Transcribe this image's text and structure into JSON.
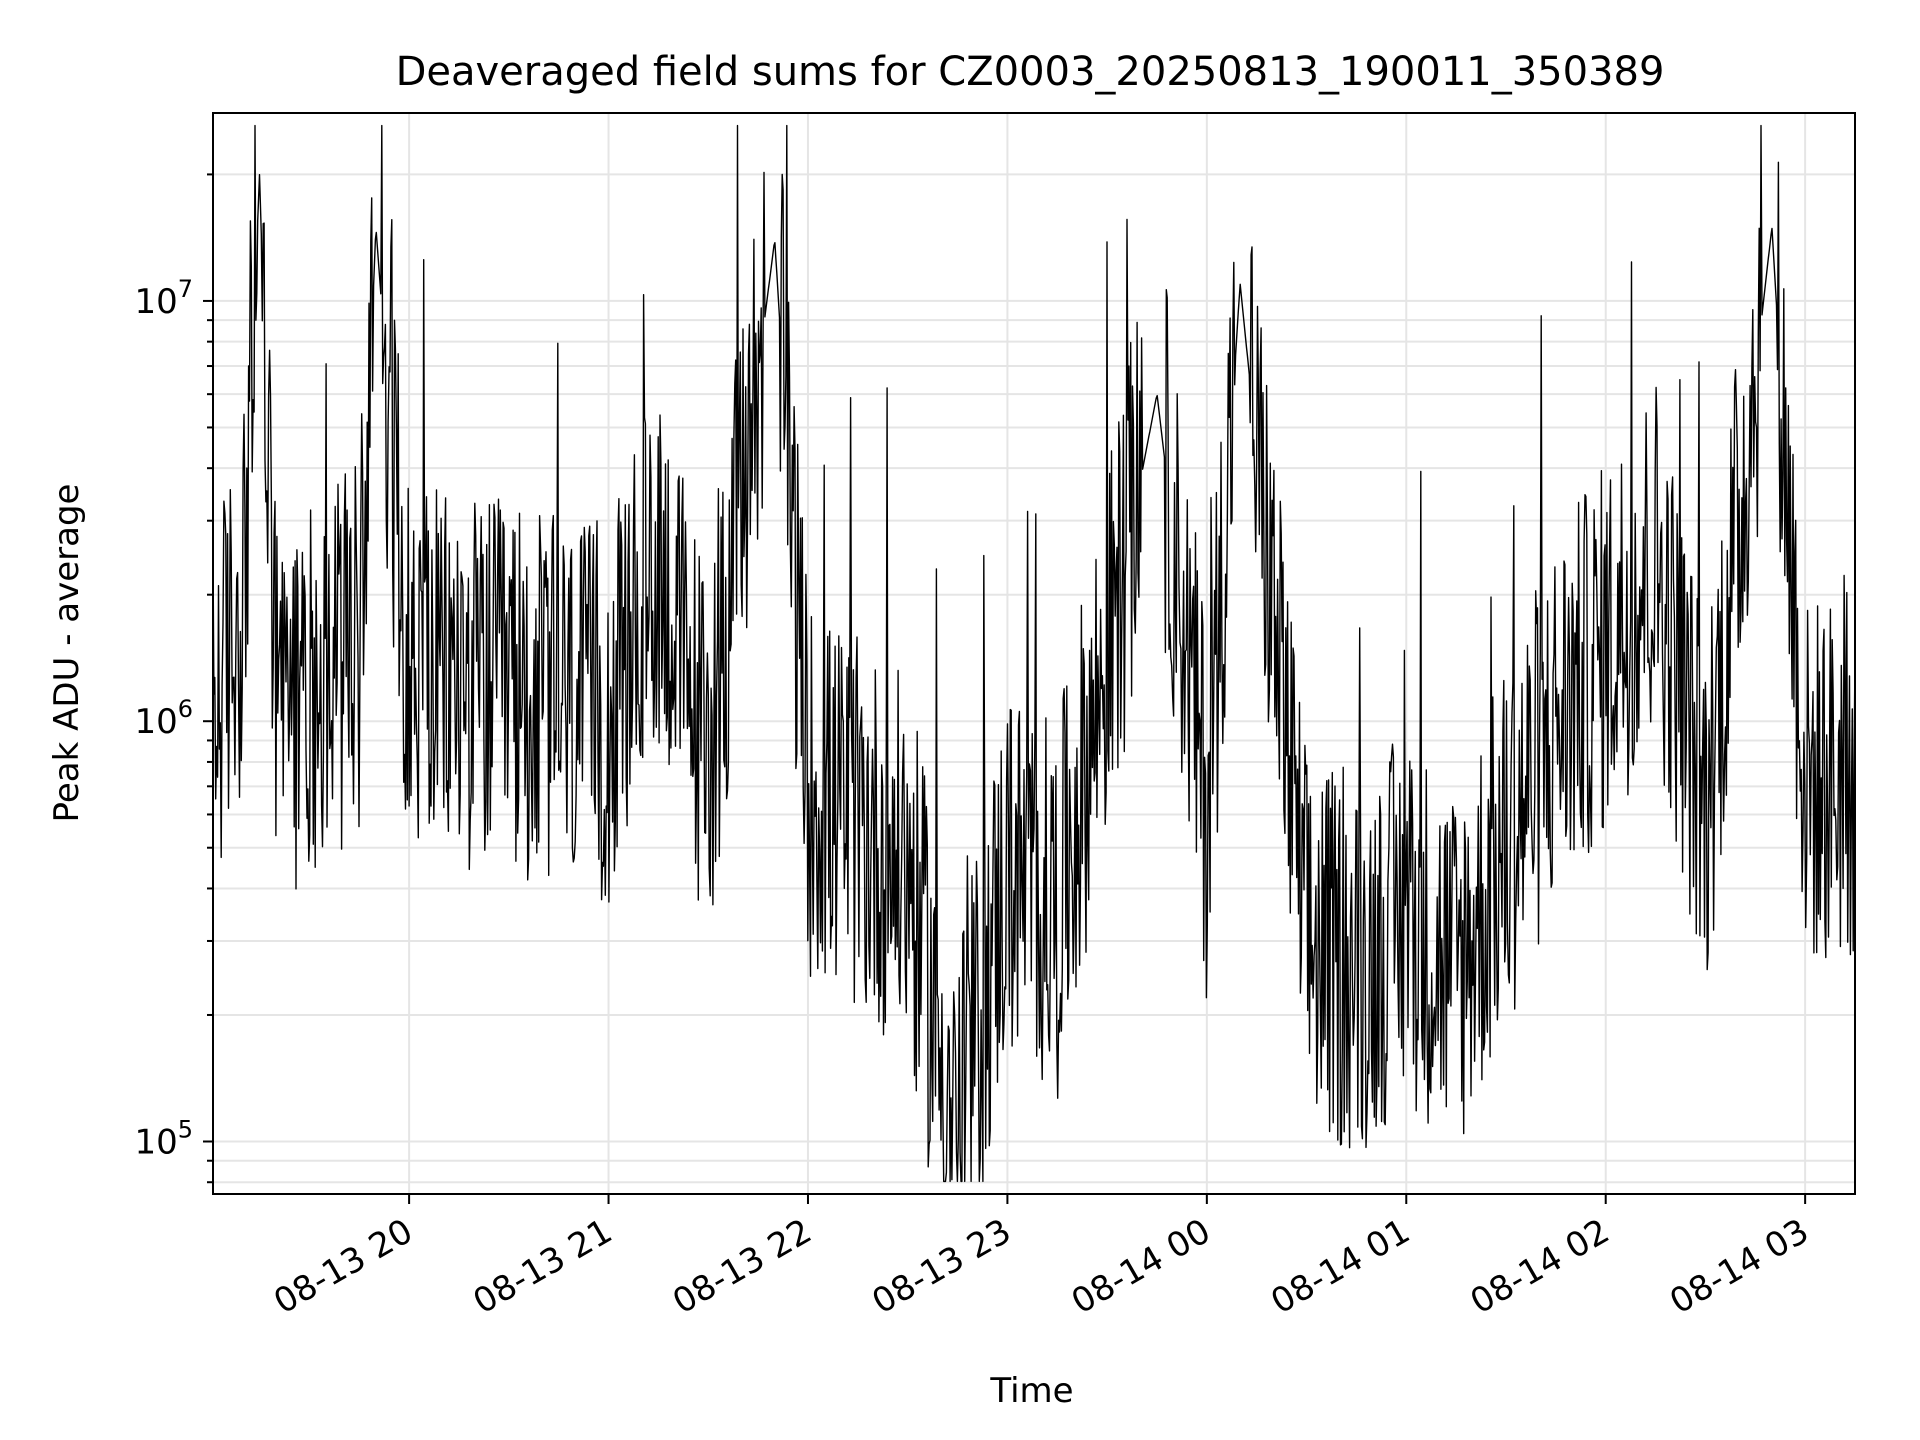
{
  "chart_data": {
    "type": "line",
    "title": "Deaveraged field sums for CZ0003_20250813_190011_350389",
    "xlabel": "Time",
    "ylabel": "Peak ADU - average",
    "x_range": [
      "2025-08-13 19:01",
      "2025-08-14 03:15"
    ],
    "ylim": [
      75000,
      28000000
    ],
    "y_scale": "log",
    "x_tick_labels": [
      "08-13 20",
      "08-13 21",
      "08-13 22",
      "08-13 23",
      "08-14 00",
      "08-14 01",
      "08-14 02",
      "08-14 03"
    ],
    "y_tick_labels": [
      {
        "base": "10",
        "exp": "5",
        "value": 100000
      },
      {
        "base": "10",
        "exp": "6",
        "value": 1000000
      },
      {
        "base": "10",
        "exp": "7",
        "value": 10000000
      }
    ],
    "grid": true,
    "line_color": "#000000",
    "grid_color": "#e5e5e5",
    "points": [
      [
        "2025-08-13 19:01",
        1000000
      ],
      [
        "2025-08-13 19:10",
        2000000
      ],
      [
        "2025-08-13 19:15",
        20000000
      ],
      [
        "2025-08-13 19:20",
        1000000
      ],
      [
        "2025-08-13 19:30",
        1200000
      ],
      [
        "2025-08-13 19:45",
        1500000
      ],
      [
        "2025-08-13 19:50",
        15000000
      ],
      [
        "2025-08-13 20:00",
        1300000
      ],
      [
        "2025-08-13 20:30",
        1200000
      ],
      [
        "2025-08-13 21:00",
        1000000
      ],
      [
        "2025-08-13 21:15",
        2500000
      ],
      [
        "2025-08-13 21:30",
        800000
      ],
      [
        "2025-08-13 21:50",
        14000000
      ],
      [
        "2025-08-13 22:00",
        700000
      ],
      [
        "2025-08-13 22:30",
        450000
      ],
      [
        "2025-08-13 22:45",
        100000
      ],
      [
        "2025-08-13 23:00",
        450000
      ],
      [
        "2025-08-13 23:15",
        350000
      ],
      [
        "2025-08-13 23:45",
        6000000
      ],
      [
        "2025-08-14 00:00",
        600000
      ],
      [
        "2025-08-14 00:10",
        11000000
      ],
      [
        "2025-08-14 00:30",
        300000
      ],
      [
        "2025-08-14 00:45",
        250000
      ],
      [
        "2025-08-14 01:00",
        350000
      ],
      [
        "2025-08-14 01:15",
        250000
      ],
      [
        "2025-08-14 01:45",
        1000000
      ],
      [
        "2025-08-14 02:00",
        1500000
      ],
      [
        "2025-08-14 02:15",
        2500000
      ],
      [
        "2025-08-14 02:30",
        600000
      ],
      [
        "2025-08-14 02:50",
        15000000
      ],
      [
        "2025-08-14 03:00",
        700000
      ],
      [
        "2025-08-14 03:15",
        750000
      ]
    ]
  }
}
